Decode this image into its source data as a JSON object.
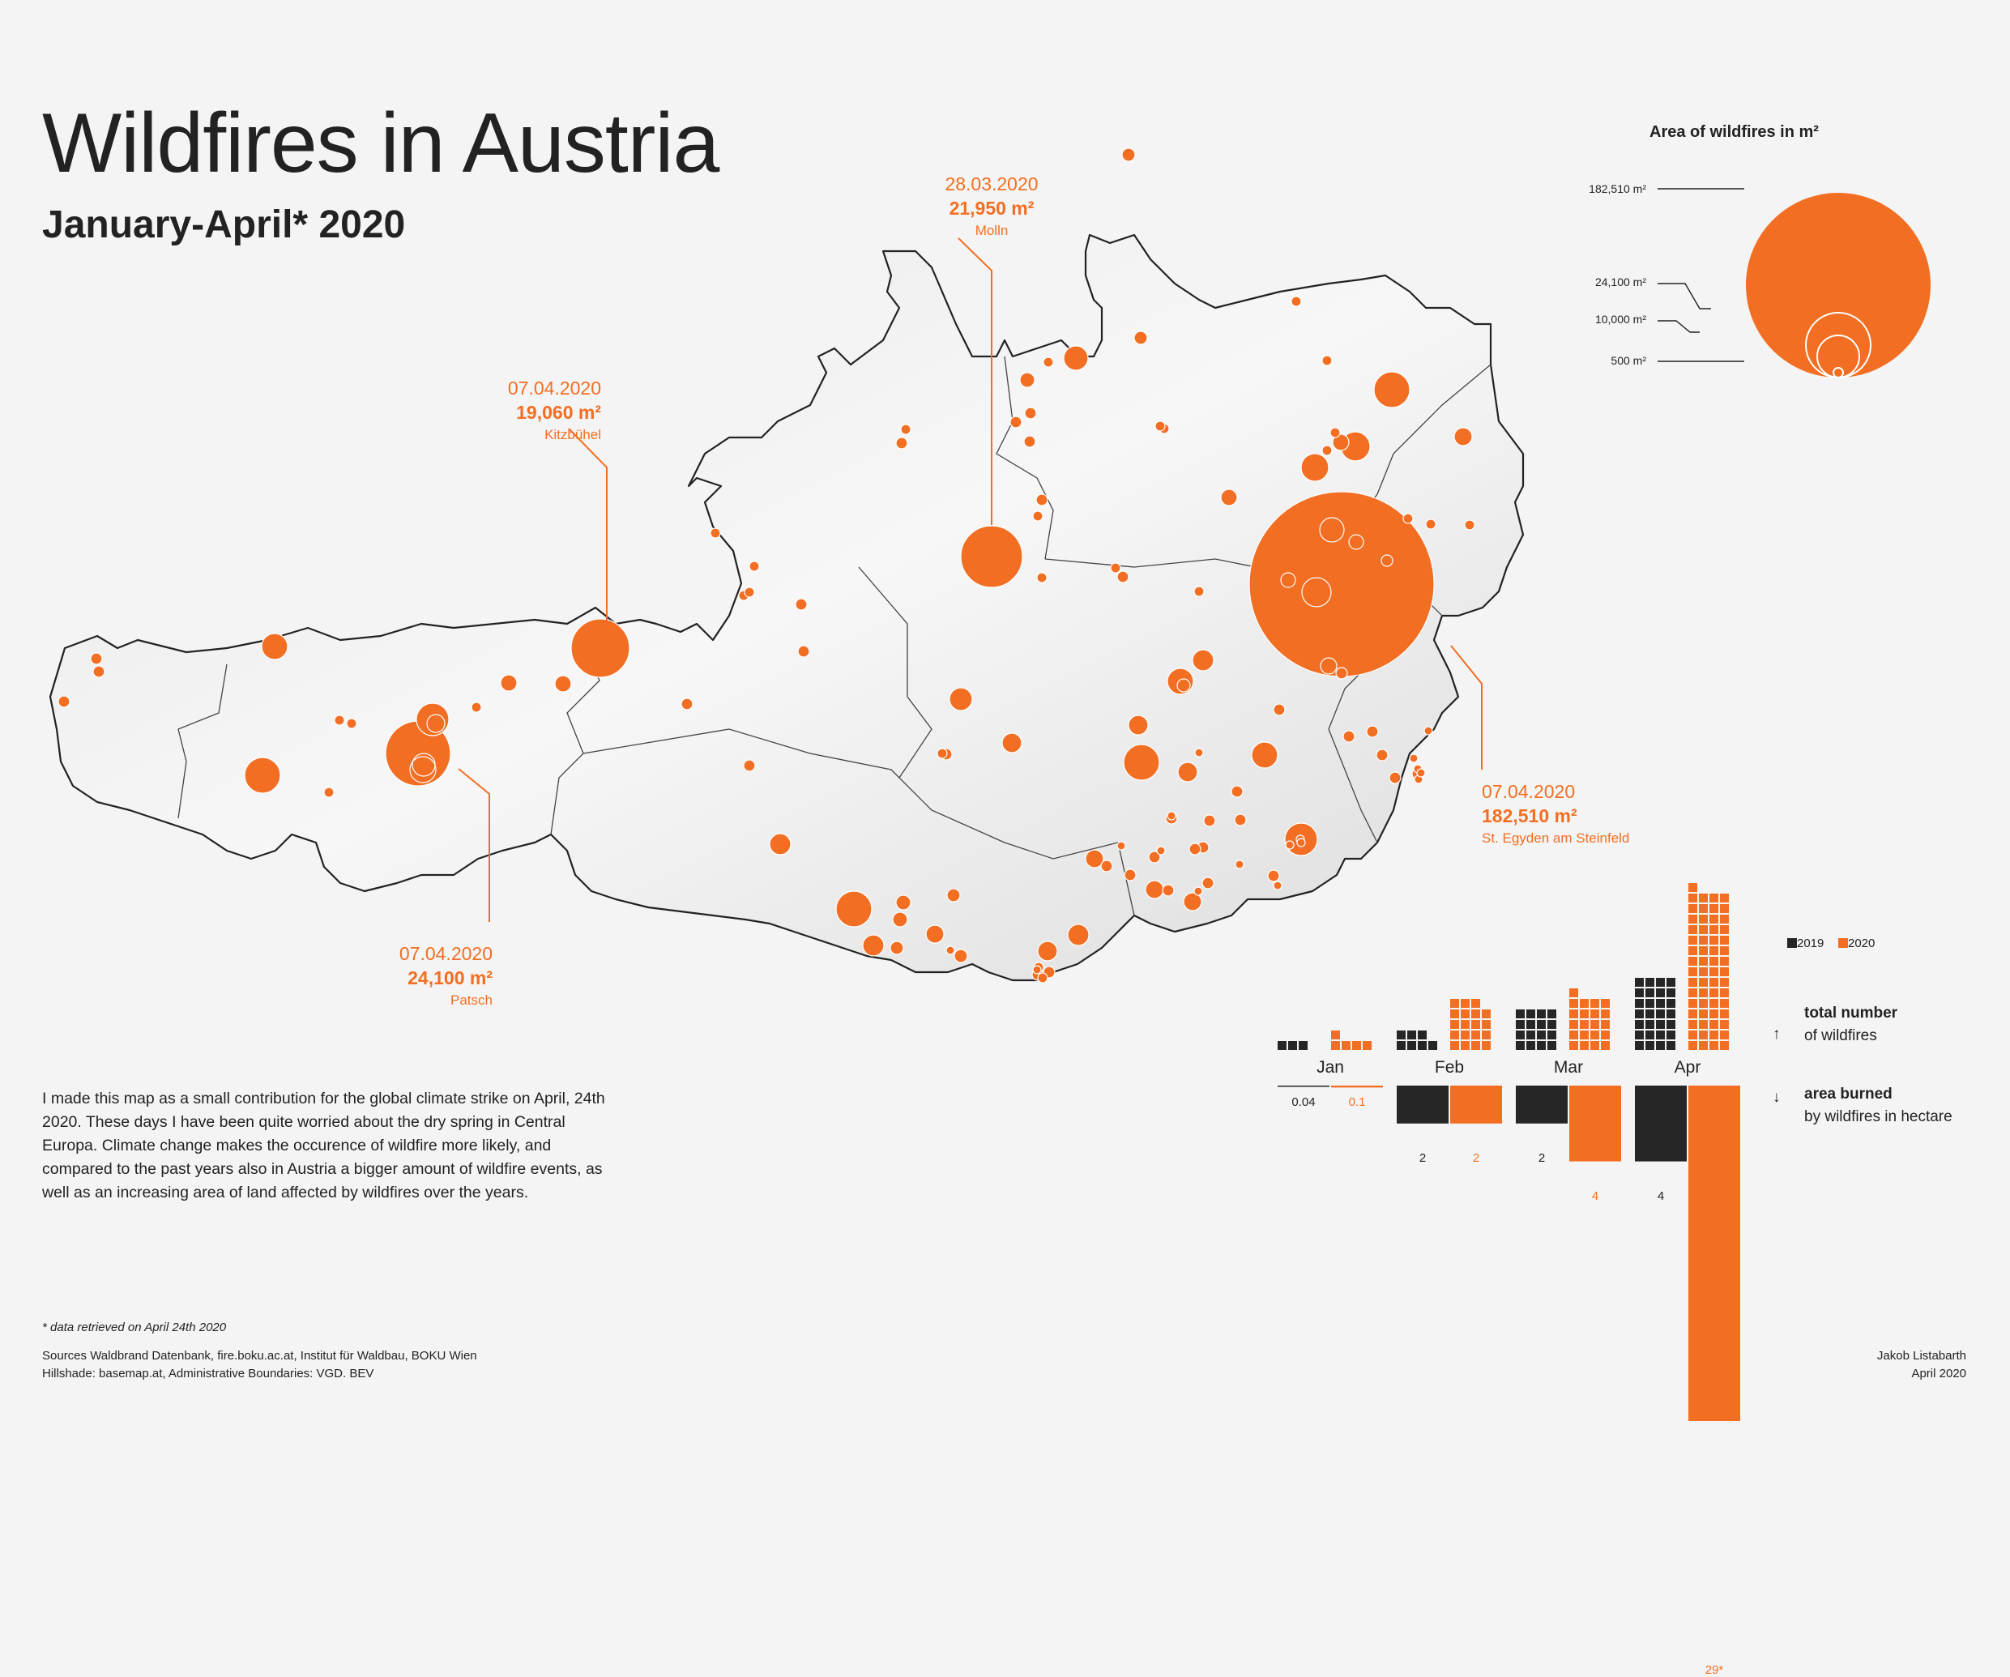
{
  "header": {
    "title": "Wildfires in Austria",
    "subtitle": "January-April* 2020"
  },
  "callouts": [
    {
      "date": "28.03.2020",
      "area": "21,950 m²",
      "place": "Molln"
    },
    {
      "date": "07.04.2020",
      "area": "19,060 m²",
      "place": "Kitzbühel"
    },
    {
      "date": "07.04.2020",
      "area": "24,100 m²",
      "place": "Patsch"
    },
    {
      "date": "07.04.2020",
      "area": "182,510 m²",
      "place": "St. Egyden am Steinfeld"
    }
  ],
  "size_legend": {
    "title": "Area of wildfires in m²",
    "labels": [
      "182,510 m²",
      "24,100 m²",
      "10,000 m²",
      "500 m²"
    ]
  },
  "intro_text": "I made this map as a small contribution for the global climate strike on April, 24th 2020. These days I have been quite worried about the dry spring in Central Europa. Climate change makes the occurence of wildfire more likely, and compared to the past years also in Austria a bigger amount of wildfire events, as well as an increasing area of land affected by wildfires over the years.",
  "footnote": "* data retrieved on April 24th 2020",
  "sources_line1": "Sources Waldbrand Datenbank, fire.boku.ac.at, Institut für Waldbau, BOKU Wien",
  "sources_line2": "Hillshade: basemap.at, Administrative Boundaries: VGD. BEV",
  "author": {
    "name": "Jakob Listabarth",
    "date": "April 2020"
  },
  "colors": {
    "accent": "#f26e22",
    "dark": "#262626",
    "background": "#f4f4f4"
  },
  "chart_data": {
    "type": "bar",
    "categories": [
      "Jan",
      "Feb",
      "Mar",
      "Apr"
    ],
    "series_names": [
      "2019",
      "2020"
    ],
    "total_number_label": "total number",
    "total_number_sub": "of wildfires",
    "area_label": "area burned",
    "area_sub": "by wildfires in hectare",
    "area_values": {
      "2019": [
        0.04,
        2,
        2,
        4
      ],
      "2020": [
        0.1,
        2,
        4,
        29
      ]
    },
    "area_value_labels": {
      "2019": [
        "0.04",
        "2",
        "2",
        "4"
      ],
      "2020": [
        "0.1",
        "2",
        "4",
        "29*"
      ]
    },
    "fire_counts": {
      "2019": [
        3,
        7,
        16,
        28
      ],
      "2020": [
        5,
        19,
        21,
        61
      ]
    }
  }
}
